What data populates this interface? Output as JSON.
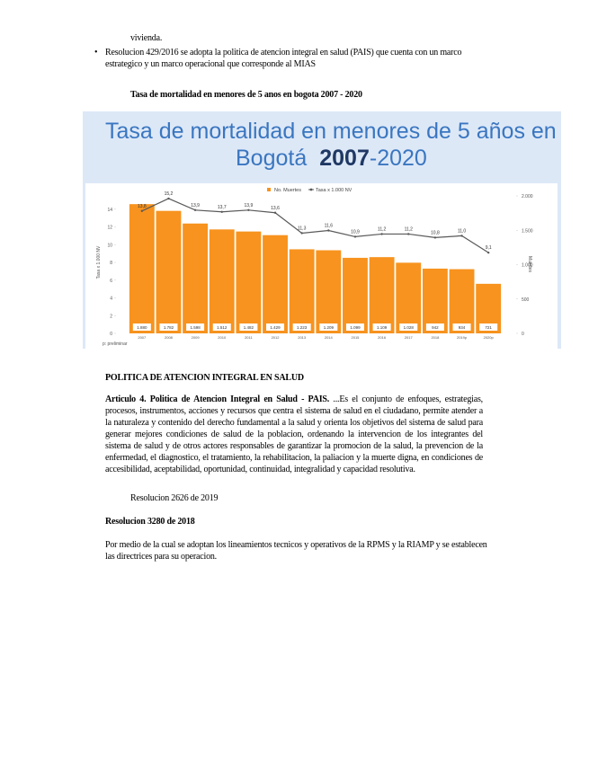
{
  "intro_tail": "vivienda.",
  "bullet": "Resolucion 429/2016 se adopta la politica de atencion integral en salud (PAIS) que cuenta con un marco estrategico y un marco operacional que corresponde al MIAS",
  "caption": "Tasa de mortalidad en menores de 5 anos en bogota 2007 - 2020",
  "chart_data": {
    "type": "bar",
    "title_line1": "Tasa de mortalidad en menores de 5 años en",
    "title_place": "Bogotá",
    "title_year_start": "2007",
    "title_year_end": "-2020",
    "categories": [
      "2007",
      "2008",
      "2009",
      "2010",
      "2011",
      "2012",
      "2013",
      "2014",
      "2015",
      "2016",
      "2017",
      "2018",
      "2019p",
      "2020p"
    ],
    "series": [
      {
        "name": "No. Muertes",
        "color": "#f7931e",
        "axis": "y2",
        "values": [
          1880,
          1782,
          1598,
          1512,
          1482,
          1429,
          1223,
          1209,
          1099,
          1109,
          1028,
          942,
          934,
          721
        ],
        "value_labels": [
          "1.880",
          "1.782",
          "1.598",
          "1.512",
          "1.482",
          "1.429",
          "1.223",
          "1.209",
          "1.099",
          "1.109",
          "1.028",
          "942",
          "934",
          "721"
        ]
      },
      {
        "name": "Tasa x 1.000 NV",
        "color": "#595959",
        "type": "line",
        "values": [
          13.8,
          15.2,
          13.9,
          13.7,
          13.9,
          13.6,
          11.3,
          11.6,
          10.9,
          11.2,
          11.2,
          10.8,
          11.0,
          9.1
        ],
        "value_labels": [
          "13,8",
          "15,2",
          "13,9",
          "13,7",
          "13,9",
          "13,6",
          "11,3",
          "11,6",
          "10,9",
          "11,2",
          "11,2",
          "10,8",
          "11,0",
          "9,1"
        ]
      }
    ],
    "ylabel": "Tasa x 1.000 NV",
    "y2label": "Muertes",
    "ylim": [
      0,
      15.5
    ],
    "yticks": [
      0,
      2,
      4,
      6,
      8,
      10,
      12,
      14
    ],
    "y2lim": [
      0,
      2000
    ],
    "y2ticks": [
      0,
      500,
      {
        "value": 1000,
        "label": "1.000"
      },
      {
        "value": 1500,
        "label": "1.500"
      },
      {
        "value": 2000,
        "label": "2.000"
      }
    ],
    "legend": "top",
    "footnote": "p: preliminar"
  },
  "heading": "POLITICA DE ATENCION INTEGRAL EN SALUD",
  "article_title": "Articulo 4. Politica de Atencion Integral en Salud - PAIS.",
  "article_body": "...Es el conjunto de enfoques, estrategias, procesos, instrumentos, acciones y recursos que centra el sistema de salud en el ciudadano, permite atender a la naturaleza y contenido del derecho fundamental a la salud y orienta los objetivos del sistema de salud para generar mejores condiciones de salud de la poblacion, ordenando la intervencion de los integrantes del sistema de salud y de otros actores responsables de garantizar la promocion de la salud, la prevencion de la enfermedad, el diagnostico, el tratamiento, la rehabilitacion, la paliacion y la muerte digna, en condiciones de accesibilidad, aceptabilidad, oportunidad, continuidad, integralidad y capacidad resolutiva.",
  "resolution_2626": "Resolucion 2626 de 2019",
  "resolution_3280_title": "Resolucion 3280 de 2018",
  "resolution_3280_body": "Por medio de la cual se adoptan los lineamientos tecnicos y operativos de la RPMS y la RIAMP y se establecen las directrices para su operacion."
}
